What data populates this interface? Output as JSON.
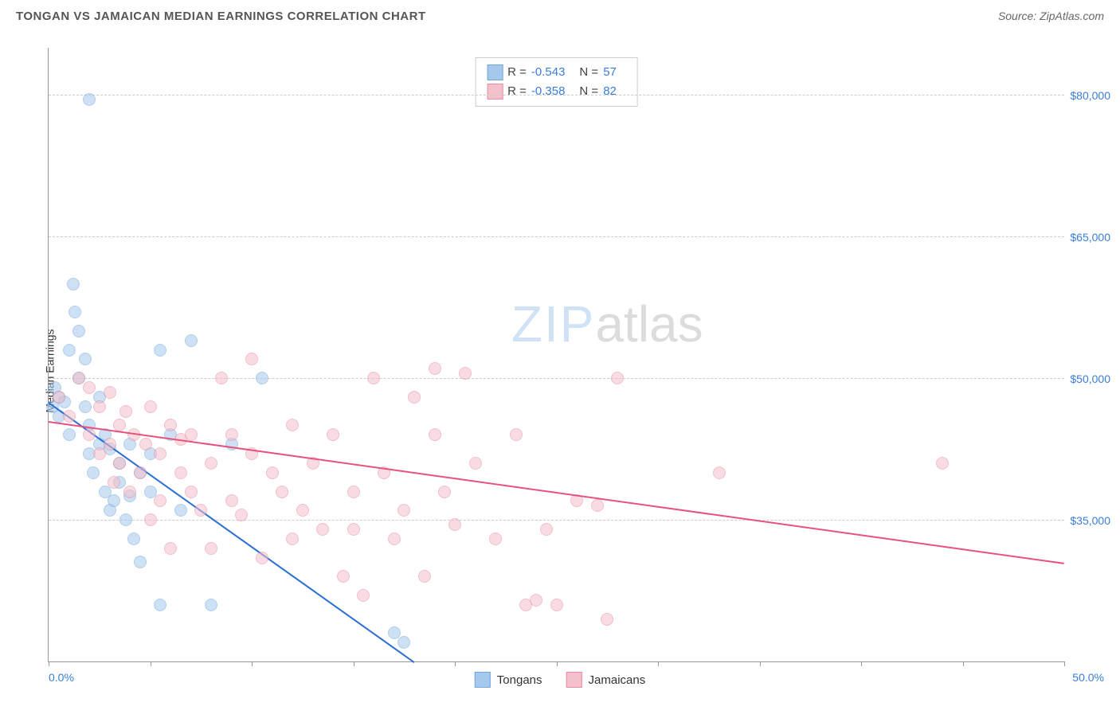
{
  "header": {
    "title": "TONGAN VS JAMAICAN MEDIAN EARNINGS CORRELATION CHART",
    "source": "Source: ZipAtlas.com"
  },
  "chart": {
    "type": "scatter",
    "ylabel": "Median Earnings",
    "xlim": [
      0,
      50
    ],
    "ylim": [
      20000,
      85000
    ],
    "x_tick_positions": [
      0,
      5,
      10,
      15,
      20,
      25,
      30,
      35,
      40,
      45,
      50
    ],
    "x_axis_labels": {
      "left": "0.0%",
      "right": "50.0%"
    },
    "y_gridlines": [
      35000,
      50000,
      65000,
      80000
    ],
    "y_tick_labels": [
      "$35,000",
      "$50,000",
      "$65,000",
      "$80,000"
    ],
    "grid_color": "#cccccc",
    "axis_color": "#999999",
    "tick_label_color": "#3b7dd8",
    "background_color": "#ffffff",
    "marker_radius": 7,
    "marker_opacity": 0.55,
    "series": [
      {
        "name": "Tongans",
        "color_fill": "#a5c8ec",
        "color_stroke": "#6fa8dc",
        "r_value": "-0.543",
        "n_value": "57",
        "trendline": {
          "x1": 0,
          "y1": 47500,
          "x2": 18,
          "y2": 20000,
          "color": "#2a6fd6",
          "width": 2
        },
        "points": [
          [
            0.2,
            47000
          ],
          [
            0.3,
            49000
          ],
          [
            0.5,
            46000
          ],
          [
            0.5,
            48000
          ],
          [
            0.8,
            47500
          ],
          [
            1.0,
            53000
          ],
          [
            1.0,
            44000
          ],
          [
            1.2,
            60000
          ],
          [
            1.3,
            57000
          ],
          [
            1.5,
            55000
          ],
          [
            1.5,
            50000
          ],
          [
            1.8,
            52000
          ],
          [
            1.8,
            47000
          ],
          [
            2.0,
            79500
          ],
          [
            2.0,
            45000
          ],
          [
            2.0,
            42000
          ],
          [
            2.2,
            40000
          ],
          [
            2.5,
            48000
          ],
          [
            2.5,
            43000
          ],
          [
            2.8,
            38000
          ],
          [
            2.8,
            44000
          ],
          [
            3.0,
            36000
          ],
          [
            3.0,
            42500
          ],
          [
            3.2,
            37000
          ],
          [
            3.5,
            39000
          ],
          [
            3.5,
            41000
          ],
          [
            3.8,
            35000
          ],
          [
            4.0,
            43000
          ],
          [
            4.0,
            37500
          ],
          [
            4.2,
            33000
          ],
          [
            4.5,
            40000
          ],
          [
            4.5,
            30500
          ],
          [
            5.0,
            38000
          ],
          [
            5.0,
            42000
          ],
          [
            5.5,
            26000
          ],
          [
            5.5,
            53000
          ],
          [
            6.0,
            44000
          ],
          [
            6.5,
            36000
          ],
          [
            7.0,
            54000
          ],
          [
            8.0,
            26000
          ],
          [
            9.0,
            43000
          ],
          [
            10.5,
            50000
          ],
          [
            17.0,
            23000
          ],
          [
            17.5,
            22000
          ]
        ]
      },
      {
        "name": "Jamaicans",
        "color_fill": "#f4c0cb",
        "color_stroke": "#e98ba3",
        "r_value": "-0.358",
        "n_value": "82",
        "trendline": {
          "x1": 0,
          "y1": 45500,
          "x2": 50,
          "y2": 30500,
          "color": "#e6527e",
          "width": 2
        },
        "points": [
          [
            0.5,
            48000
          ],
          [
            1.0,
            46000
          ],
          [
            1.5,
            50000
          ],
          [
            2.0,
            49000
          ],
          [
            2.0,
            44000
          ],
          [
            2.5,
            47000
          ],
          [
            2.5,
            42000
          ],
          [
            3.0,
            48500
          ],
          [
            3.0,
            43000
          ],
          [
            3.2,
            39000
          ],
          [
            3.5,
            45000
          ],
          [
            3.5,
            41000
          ],
          [
            3.8,
            46500
          ],
          [
            4.0,
            38000
          ],
          [
            4.2,
            44000
          ],
          [
            4.5,
            40000
          ],
          [
            4.8,
            43000
          ],
          [
            5.0,
            47000
          ],
          [
            5.0,
            35000
          ],
          [
            5.5,
            42000
          ],
          [
            5.5,
            37000
          ],
          [
            6.0,
            45000
          ],
          [
            6.0,
            32000
          ],
          [
            6.5,
            40000
          ],
          [
            6.5,
            43500
          ],
          [
            7.0,
            38000
          ],
          [
            7.0,
            44000
          ],
          [
            7.5,
            36000
          ],
          [
            8.0,
            41000
          ],
          [
            8.0,
            32000
          ],
          [
            8.5,
            50000
          ],
          [
            9.0,
            44000
          ],
          [
            9.0,
            37000
          ],
          [
            9.5,
            35500
          ],
          [
            10.0,
            52000
          ],
          [
            10.0,
            42000
          ],
          [
            10.5,
            31000
          ],
          [
            11.0,
            40000
          ],
          [
            11.5,
            38000
          ],
          [
            12.0,
            45000
          ],
          [
            12.0,
            33000
          ],
          [
            12.5,
            36000
          ],
          [
            13.0,
            41000
          ],
          [
            13.5,
            34000
          ],
          [
            14.0,
            44000
          ],
          [
            14.5,
            29000
          ],
          [
            15.0,
            38000
          ],
          [
            15.0,
            34000
          ],
          [
            15.5,
            27000
          ],
          [
            16.0,
            50000
          ],
          [
            16.5,
            40000
          ],
          [
            17.0,
            33000
          ],
          [
            17.5,
            36000
          ],
          [
            18.0,
            48000
          ],
          [
            18.5,
            29000
          ],
          [
            19.0,
            51000
          ],
          [
            19.0,
            44000
          ],
          [
            19.5,
            38000
          ],
          [
            20.0,
            34500
          ],
          [
            20.5,
            50500
          ],
          [
            21.0,
            41000
          ],
          [
            22.0,
            33000
          ],
          [
            23.0,
            44000
          ],
          [
            23.5,
            26000
          ],
          [
            24.0,
            26500
          ],
          [
            24.5,
            34000
          ],
          [
            25.0,
            26000
          ],
          [
            26.0,
            37000
          ],
          [
            27.0,
            36500
          ],
          [
            27.5,
            24500
          ],
          [
            28.0,
            50000
          ],
          [
            33.0,
            40000
          ],
          [
            44.0,
            41000
          ]
        ]
      }
    ],
    "watermark": {
      "zip": "ZIP",
      "atlas": "atlas"
    },
    "bottom_legend": [
      {
        "label": "Tongans",
        "fill": "#a5c8ec",
        "stroke": "#6fa8dc"
      },
      {
        "label": "Jamaicans",
        "fill": "#f4c0cb",
        "stroke": "#e98ba3"
      }
    ]
  }
}
